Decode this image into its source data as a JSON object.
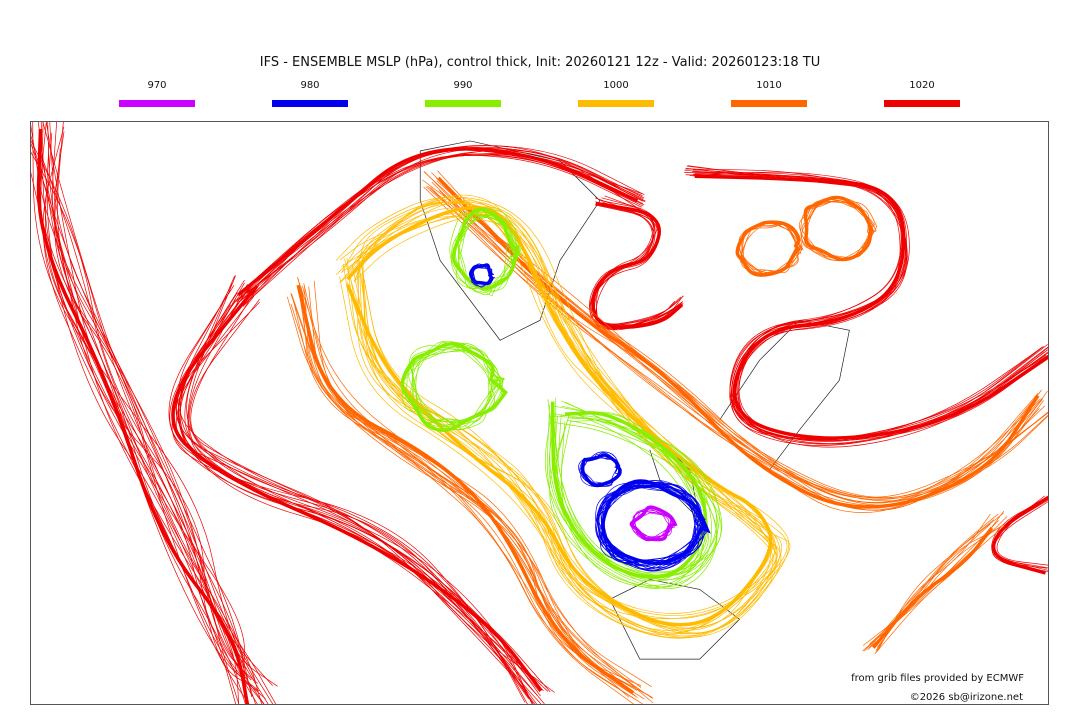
{
  "title": "IFS - ENSEMBLE MSLP (hPa), control thick, Init: 20260121 12z - Valid: 20260123:18 TU",
  "legend": [
    {
      "label": "970",
      "color": "#cc00ff"
    },
    {
      "label": "980",
      "color": "#0000ee"
    },
    {
      "label": "990",
      "color": "#88ee00"
    },
    {
      "label": "1000",
      "color": "#ffbb00"
    },
    {
      "label": "1010",
      "color": "#ff6600"
    },
    {
      "label": "1020",
      "color": "#ee0000"
    }
  ],
  "credits": {
    "source": "from grib files provided by ECMWF",
    "copyright": "©2026 sb@irizone.net"
  }
}
